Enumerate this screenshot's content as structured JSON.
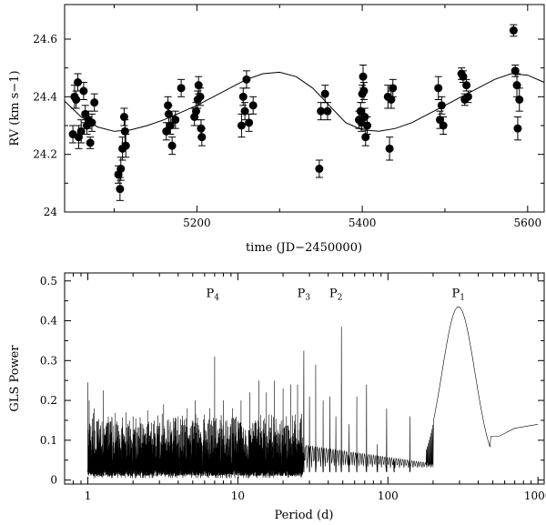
{
  "chart_data": [
    {
      "type": "scatter",
      "xlabel": "time (JD−2450000)",
      "ylabel": "RV (km s−1)",
      "xlim": [
        5040,
        5620
      ],
      "ylim": [
        24.0,
        24.72
      ],
      "xticks": [
        5200,
        5400,
        5600
      ],
      "xtick_labels": [
        "5200",
        "5400",
        "5600"
      ],
      "yticks": [
        24.0,
        24.2,
        24.4,
        24.6
      ],
      "ytick_labels": [
        "24",
        "24.2",
        "24.4",
        "24.6"
      ],
      "grid": false,
      "series": [
        {
          "marker": "filled-circle-with-errorbars",
          "points": [
            [
              5050,
              24.27,
              0.03
            ],
            [
              5052,
              24.4,
              0.04
            ],
            [
              5054,
              24.39,
              0.03
            ],
            [
              5056,
              24.45,
              0.03
            ],
            [
              5057,
              24.26,
              0.04
            ],
            [
              5060,
              24.28,
              0.04
            ],
            [
              5063,
              24.42,
              0.03
            ],
            [
              5065,
              24.34,
              0.03
            ],
            [
              5067,
              24.3,
              0.03
            ],
            [
              5069,
              24.32,
              0.03
            ],
            [
              5071,
              24.24,
              0.02
            ],
            [
              5073,
              24.31,
              0.03
            ],
            [
              5076,
              24.38,
              0.03
            ],
            [
              5105,
              24.13,
              0.03
            ],
            [
              5107,
              24.08,
              0.04
            ],
            [
              5108,
              24.15,
              0.04
            ],
            [
              5110,
              24.22,
              0.04
            ],
            [
              5112,
              24.33,
              0.03
            ],
            [
              5113,
              24.28,
              0.04
            ],
            [
              5114,
              24.23,
              0.04
            ],
            [
              5163,
              24.28,
              0.03
            ],
            [
              5165,
              24.37,
              0.03
            ],
            [
              5166,
              24.34,
              0.03
            ],
            [
              5168,
              24.3,
              0.03
            ],
            [
              5170,
              24.23,
              0.03
            ],
            [
              5174,
              24.32,
              0.03
            ],
            [
              5181,
              24.43,
              0.03
            ],
            [
              5197,
              24.33,
              0.03
            ],
            [
              5199,
              24.35,
              0.03
            ],
            [
              5201,
              24.39,
              0.03
            ],
            [
              5202,
              24.44,
              0.03
            ],
            [
              5204,
              24.4,
              0.03
            ],
            [
              5205,
              24.29,
              0.03
            ],
            [
              5206,
              24.26,
              0.03
            ],
            [
              5254,
              24.3,
              0.04
            ],
            [
              5256,
              24.4,
              0.03
            ],
            [
              5258,
              24.35,
              0.03
            ],
            [
              5260,
              24.46,
              0.03
            ],
            [
              5263,
              24.31,
              0.03
            ],
            [
              5268,
              24.37,
              0.03
            ],
            [
              5348,
              24.15,
              0.03
            ],
            [
              5350,
              24.35,
              0.03
            ],
            [
              5355,
              24.41,
              0.03
            ],
            [
              5358,
              24.35,
              0.03
            ],
            [
              5396,
              24.32,
              0.03
            ],
            [
              5398,
              24.35,
              0.03
            ],
            [
              5399,
              24.31,
              0.03
            ],
            [
              5400,
              24.41,
              0.03
            ],
            [
              5401,
              24.47,
              0.04
            ],
            [
              5402,
              24.42,
              0.03
            ],
            [
              5403,
              24.33,
              0.03
            ],
            [
              5404,
              24.26,
              0.03
            ],
            [
              5406,
              24.3,
              0.03
            ],
            [
              5431,
              24.4,
              0.04
            ],
            [
              5433,
              24.22,
              0.04
            ],
            [
              5435,
              24.39,
              0.03
            ],
            [
              5437,
              24.43,
              0.03
            ],
            [
              5492,
              24.43,
              0.04
            ],
            [
              5494,
              24.32,
              0.03
            ],
            [
              5496,
              24.37,
              0.03
            ],
            [
              5498,
              24.3,
              0.03
            ],
            [
              5520,
              24.48,
              0.02
            ],
            [
              5522,
              24.47,
              0.02
            ],
            [
              5524,
              24.39,
              0.02
            ],
            [
              5526,
              24.44,
              0.02
            ],
            [
              5528,
              24.4,
              0.02
            ],
            [
              5583,
              24.63,
              0.02
            ],
            [
              5585,
              24.49,
              0.02
            ],
            [
              5587,
              24.44,
              0.04
            ],
            [
              5588,
              24.29,
              0.04
            ],
            [
              5590,
              24.39,
              0.04
            ]
          ]
        },
        {
          "name": "",
          "type": "line",
          "model": "sinusoid",
          "x": [
            5040,
            5060,
            5080,
            5100,
            5120,
            5140,
            5160,
            5180,
            5200,
            5220,
            5240,
            5260,
            5280,
            5300,
            5320,
            5340,
            5360,
            5380,
            5400,
            5420,
            5440,
            5460,
            5480,
            5500,
            5520,
            5540,
            5560,
            5580,
            5600,
            5620
          ],
          "y": [
            24.385,
            24.33,
            24.295,
            24.28,
            24.285,
            24.3,
            24.32,
            24.345,
            24.37,
            24.4,
            24.43,
            24.46,
            24.48,
            24.485,
            24.47,
            24.43,
            24.37,
            24.31,
            24.285,
            24.28,
            24.29,
            24.31,
            24.34,
            24.37,
            24.4,
            24.43,
            24.46,
            24.48,
            24.475,
            24.45
          ]
        }
      ]
    },
    {
      "type": "line",
      "xlabel": "Period (d)",
      "ylabel": "GLS Power",
      "xscale": "log",
      "xlim": [
        0.7,
        1100
      ],
      "ylim": [
        -0.01,
        0.52
      ],
      "xticks": [
        1,
        10,
        100,
        1000
      ],
      "xtick_labels": [
        "1",
        "10",
        "100",
        "1000"
      ],
      "yticks": [
        0,
        0.1,
        0.2,
        0.3,
        0.4,
        0.5
      ],
      "ytick_labels": [
        "0",
        "0.1",
        "0.2",
        "0.3",
        "0.4",
        "0.5"
      ],
      "grid": false,
      "annotations": [
        {
          "label": "P",
          "sub": "4",
          "x": 6.8,
          "y": 0.46
        },
        {
          "label": "P",
          "sub": "3",
          "x": 27.5,
          "y": 0.46
        },
        {
          "label": "P",
          "sub": "2",
          "x": 45.0,
          "y": 0.46
        },
        {
          "label": "P",
          "sub": "1",
          "x": 295,
          "y": 0.46
        }
      ],
      "periodogram": {
        "noise_region": [
          1.0,
          27.0
        ],
        "spikes": [
          [
            1.0,
            0.245
          ],
          [
            1.02,
            0.2
          ],
          [
            1.1,
            0.18
          ],
          [
            1.27,
            0.225
          ],
          [
            1.35,
            0.14
          ],
          [
            1.55,
            0.14
          ],
          [
            1.8,
            0.17
          ],
          [
            2.0,
            0.16
          ],
          [
            2.5,
            0.175
          ],
          [
            3.2,
            0.19
          ],
          [
            4.0,
            0.16
          ],
          [
            4.6,
            0.18
          ],
          [
            5.2,
            0.2
          ],
          [
            6.5,
            0.18
          ],
          [
            7.0,
            0.31
          ],
          [
            8.0,
            0.2
          ],
          [
            9.2,
            0.18
          ],
          [
            10.5,
            0.2
          ],
          [
            12.0,
            0.22
          ],
          [
            13.8,
            0.25
          ],
          [
            15.5,
            0.22
          ],
          [
            17.5,
            0.25
          ],
          [
            20.0,
            0.23
          ],
          [
            22.5,
            0.24
          ],
          [
            25.0,
            0.24
          ],
          [
            27.5,
            0.325
          ],
          [
            30.0,
            0.21
          ],
          [
            33.0,
            0.29
          ],
          [
            37.0,
            0.2
          ],
          [
            41.0,
            0.21
          ],
          [
            45.0,
            0.16
          ],
          [
            49.0,
            0.385
          ],
          [
            55.0,
            0.14
          ],
          [
            62.0,
            0.21
          ],
          [
            72.0,
            0.24
          ],
          [
            85.0,
            0.09
          ],
          [
            98.0,
            0.18
          ],
          [
            110.0,
            0.05
          ],
          [
            140.0,
            0.16
          ]
        ],
        "main_peak": {
          "period": 295,
          "power": 0.435
        },
        "tail": [
          [
            550,
            0.11
          ],
          [
            700,
            0.13
          ],
          [
            1000,
            0.14
          ]
        ]
      }
    }
  ]
}
